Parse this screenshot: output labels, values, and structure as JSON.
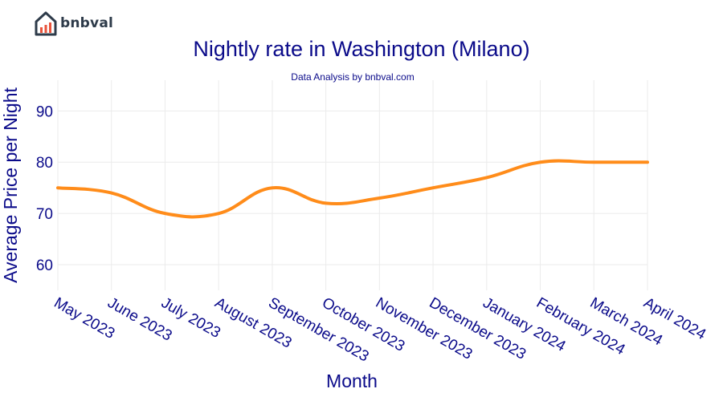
{
  "brand": {
    "name": "bnbval",
    "logo_icon": "house-chart-icon",
    "logo_color": "#2e3b4a",
    "accent": "#e8533b"
  },
  "chart_data": {
    "type": "line",
    "title": "Nightly rate in Washington (Milano)",
    "subtitle": "Data Analysis by bnbval.com",
    "xlabel": "Month",
    "ylabel": "Average Price per Night",
    "categories": [
      "May 2023",
      "June 2023",
      "July 2023",
      "August 2023",
      "September 2023",
      "October 2023",
      "November 2023",
      "December 2023",
      "January 2024",
      "February 2024",
      "March 2024",
      "April 2024"
    ],
    "series": [
      {
        "values": [
          75,
          74,
          70,
          70,
          75,
          72,
          73,
          75,
          77,
          80,
          80,
          80
        ],
        "color": "#ff8c1a"
      }
    ],
    "ylim": [
      55,
      96
    ],
    "yticks": [
      60,
      70,
      80,
      90
    ],
    "grid": true,
    "legend": "none"
  }
}
